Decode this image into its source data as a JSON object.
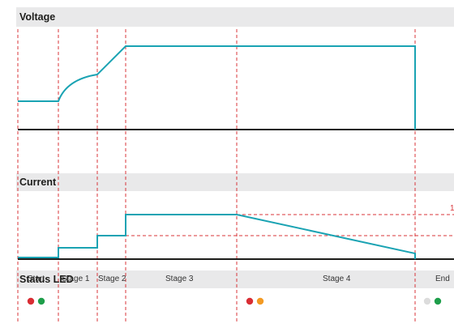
{
  "sections": {
    "voltage_title": "Voltage",
    "current_title": "Current",
    "status_title": "Status LED"
  },
  "stages": [
    "Start",
    "Stage 1",
    "Stage 2",
    "Stage 3",
    "Stage 4",
    "End"
  ],
  "current_ref_label": "1",
  "status_leds": [
    {
      "phase": "start",
      "colors": [
        "#d92d34",
        "#1e9e4a"
      ]
    },
    {
      "phase": "stage4",
      "colors": [
        "#d92d34",
        "#f39a23"
      ]
    },
    {
      "phase": "end",
      "colors": [
        "#dcdcdc",
        "#1e9e4a"
      ]
    }
  ],
  "colors": {
    "signal": "#1aa3b3",
    "divider": "#d8353a",
    "axis": "#1d1d1b",
    "band": "#e9e9ea"
  }
}
